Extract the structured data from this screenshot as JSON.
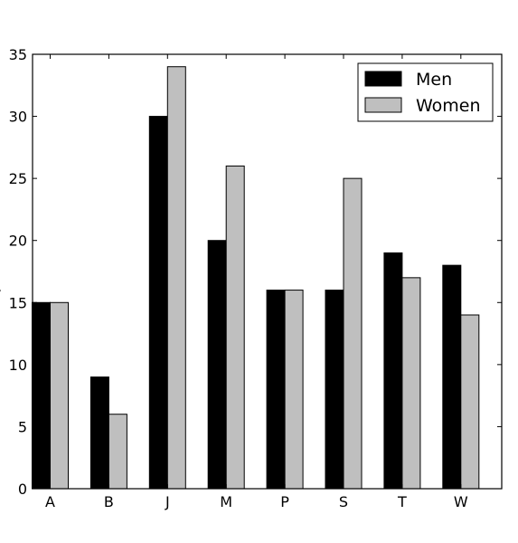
{
  "chart_data": {
    "type": "bar",
    "categories": [
      "A",
      "B",
      "J",
      "M",
      "P",
      "S",
      "T",
      "W"
    ],
    "series": [
      {
        "name": "Men",
        "values": [
          15,
          9,
          30,
          20,
          16,
          16,
          19,
          18
        ],
        "color": "#000000"
      },
      {
        "name": "Women",
        "values": [
          15,
          6,
          34,
          26,
          16,
          25,
          17,
          14
        ],
        "color": "#bfbfbf"
      }
    ],
    "title": "",
    "xlabel": "",
    "ylabel": "",
    "ylim": [
      0,
      35
    ],
    "yticks": [
      0,
      5,
      10,
      15,
      20,
      25,
      30,
      35
    ],
    "grid": false,
    "legend": "top-right"
  }
}
